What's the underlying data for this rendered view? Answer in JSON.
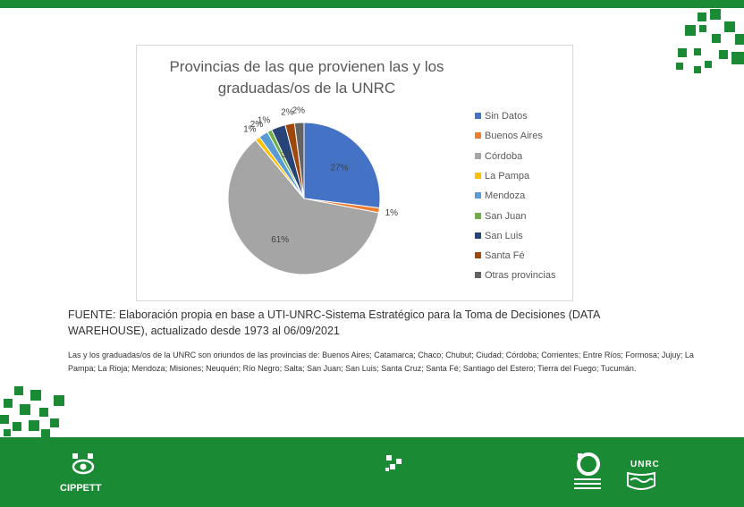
{
  "chart_data": {
    "type": "pie",
    "title": "Provincias de las que provienen las y los graduadas/os de la UNRC",
    "title_lines": [
      "Provincias de las que provienen las y los",
      "graduadas/os de la UNRC"
    ],
    "categories": [
      "Sin Datos",
      "Buenos Aires",
      "Córdoba",
      "La Pampa",
      "Mendoza",
      "San Juan",
      "San Luis",
      "Santa Fé",
      "Otras provincias"
    ],
    "values": [
      27,
      1,
      61,
      1,
      2,
      1,
      3,
      2,
      2
    ],
    "labels": [
      "27%",
      "1%",
      "61%",
      "1%",
      "2%",
      "1%",
      "3%",
      "2%",
      "2%"
    ],
    "colors": [
      "#4472c4",
      "#ed7d31",
      "#a5a5a5",
      "#ffc000",
      "#5b9bd5",
      "#70ad47",
      "#264478",
      "#9e480e",
      "#636363"
    ],
    "legend_position": "right"
  },
  "source_text": "FUENTE: Elaboración propia en base a UTI-UNRC-Sistema Estratégico para la Toma de Decisiones (DATA WAREHOUSE), actualizado desde 1973 al 06/09/2021",
  "note_text": "Las y los graduadas/os de la UNRC son oriundos de las provincias de: Buenos Aires; Catamarca; Chaco; Chubut; Ciudad; Córdoba; Corrientes; Entre Ríos; Formosa; Jujuy; La Pampa; La Rioja; Mendoza; Misiones; Neuquén; Río Negro; Salta; San Juan; San Luis; Santa Cruz; Santa Fé; Santiago del Estero; Tierra del Fuego; Tucumán.",
  "footer": {
    "cippett_label": "CIPPETT",
    "unrc_label": "UNRC"
  },
  "colors": {
    "brand_green": "#1a8a34"
  }
}
